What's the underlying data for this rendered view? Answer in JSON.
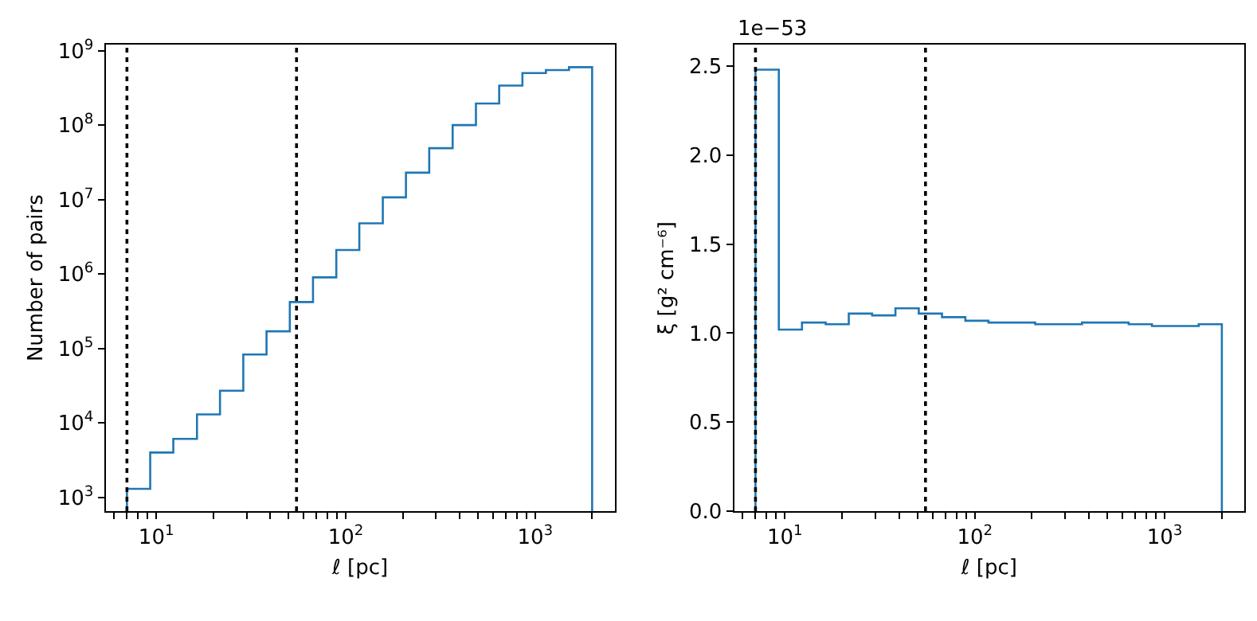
{
  "chart_data": [
    {
      "type": "histogram",
      "xlabel": "ℓ [pc]",
      "ylabel": "Number of pairs",
      "log": "xy",
      "grid": false,
      "color": "#1f77b4",
      "bins": [
        7,
        9.29,
        12.3,
        16.4,
        21.7,
        28.8,
        38.2,
        50.7,
        67.2,
        89.2,
        118,
        157,
        208,
        276,
        367,
        487,
        646,
        857,
        1140,
        1510,
        2000
      ],
      "values": [
        1300,
        4000,
        6100,
        13000,
        27000,
        83000,
        170000,
        420000,
        900000,
        2100000,
        4800000,
        10700000,
        23000000,
        49000000,
        100000000,
        195000000,
        340000000,
        500000000,
        550000000,
        600000000
      ],
      "xlim": [
        5.4,
        2630
      ],
      "ylim": [
        650,
        1200000000
      ],
      "xticks": [
        {
          "value": 6,
          "label": null
        },
        {
          "value": 7,
          "label": null
        },
        {
          "value": 8,
          "label": null
        },
        {
          "value": 9,
          "label": null
        },
        {
          "value": 10,
          "label": "10$^{1}$"
        },
        {
          "value": 20,
          "label": null
        },
        {
          "value": 30,
          "label": null
        },
        {
          "value": 40,
          "label": null
        },
        {
          "value": 50,
          "label": null
        },
        {
          "value": 60,
          "label": null
        },
        {
          "value": 70,
          "label": null
        },
        {
          "value": 80,
          "label": null
        },
        {
          "value": 90,
          "label": null
        },
        {
          "value": 100,
          "label": "10$^{2}$"
        },
        {
          "value": 200,
          "label": null
        },
        {
          "value": 300,
          "label": null
        },
        {
          "value": 400,
          "label": null
        },
        {
          "value": 500,
          "label": null
        },
        {
          "value": 600,
          "label": null
        },
        {
          "value": 700,
          "label": null
        },
        {
          "value": 800,
          "label": null
        },
        {
          "value": 900,
          "label": null
        },
        {
          "value": 1000,
          "label": "10$^{3}$"
        },
        {
          "value": 2000,
          "label": null
        }
      ],
      "yticks": [
        {
          "value": 1000,
          "label": "10$^{3}$"
        },
        {
          "value": 10000,
          "label": "10$^{4}$"
        },
        {
          "value": 100000,
          "label": "10$^{5}$"
        },
        {
          "value": 1000000,
          "label": "10$^{6}$"
        },
        {
          "value": 10000000,
          "label": "10$^{7}$"
        },
        {
          "value": 100000000,
          "label": "10$^{8}$"
        },
        {
          "value": 1000000000,
          "label": "10$^{9}$"
        }
      ],
      "ref_lines": [
        {
          "axis": "x",
          "value": 7,
          "color": "#000000",
          "line_style": "dotted"
        },
        {
          "axis": "x",
          "value": 55,
          "color": "#000000",
          "line_style": "dotted"
        }
      ]
    },
    {
      "type": "histogram",
      "xlabel": "ℓ [pc]",
      "ylabel": "ξ [g² cm⁻⁶]",
      "log": "x",
      "grid": false,
      "color": "#1f77b4",
      "annotations": [
        "1e−53"
      ],
      "bins": [
        7,
        9.29,
        12.3,
        16.4,
        21.7,
        28.8,
        38.2,
        50.7,
        67.2,
        89.2,
        118,
        157,
        208,
        276,
        367,
        487,
        646,
        857,
        1140,
        1510,
        2000
      ],
      "values": [
        2.48,
        1.02,
        1.06,
        1.05,
        1.11,
        1.1,
        1.14,
        1.11,
        1.09,
        1.07,
        1.06,
        1.06,
        1.05,
        1.05,
        1.06,
        1.06,
        1.05,
        1.04,
        1.04,
        1.05
      ],
      "xlim": [
        5.4,
        2630
      ],
      "ylim": [
        0,
        2.62
      ],
      "xticks": [
        {
          "value": 6,
          "label": null
        },
        {
          "value": 7,
          "label": null
        },
        {
          "value": 8,
          "label": null
        },
        {
          "value": 9,
          "label": null
        },
        {
          "value": 10,
          "label": "10$^{1}$"
        },
        {
          "value": 20,
          "label": null
        },
        {
          "value": 30,
          "label": null
        },
        {
          "value": 40,
          "label": null
        },
        {
          "value": 50,
          "label": null
        },
        {
          "value": 60,
          "label": null
        },
        {
          "value": 70,
          "label": null
        },
        {
          "value": 80,
          "label": null
        },
        {
          "value": 90,
          "label": null
        },
        {
          "value": 100,
          "label": "10$^{2}$"
        },
        {
          "value": 200,
          "label": null
        },
        {
          "value": 300,
          "label": null
        },
        {
          "value": 400,
          "label": null
        },
        {
          "value": 500,
          "label": null
        },
        {
          "value": 600,
          "label": null
        },
        {
          "value": 700,
          "label": null
        },
        {
          "value": 800,
          "label": null
        },
        {
          "value": 900,
          "label": null
        },
        {
          "value": 1000,
          "label": "10$^{3}$"
        },
        {
          "value": 2000,
          "label": null
        }
      ],
      "yticks": [
        {
          "value": 0,
          "label": "0.0"
        },
        {
          "value": 0.5,
          "label": "0.5"
        },
        {
          "value": 1,
          "label": "1.0"
        },
        {
          "value": 1.5,
          "label": "1.5"
        },
        {
          "value": 2,
          "label": "2.0"
        },
        {
          "value": 2.5,
          "label": "2.5"
        }
      ],
      "ref_lines": [
        {
          "axis": "x",
          "value": 7,
          "color": "#000000",
          "line_style": "dotted"
        },
        {
          "axis": "x",
          "value": 55,
          "color": "#000000",
          "line_style": "dotted"
        }
      ]
    }
  ]
}
